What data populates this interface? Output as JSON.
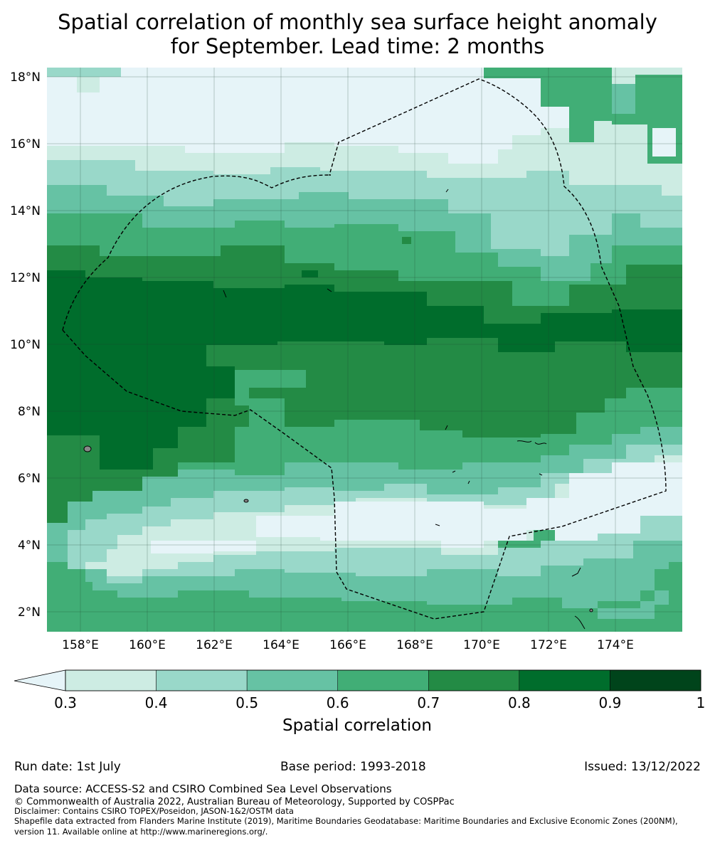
{
  "title": {
    "line1": "Spatial correlation of monthly sea surface height anomaly",
    "line2": "for September. Lead time: 2 months"
  },
  "map": {
    "lat_labels": [
      "18°N",
      "16°N",
      "14°N",
      "12°N",
      "10°N",
      "8°N",
      "6°N",
      "4°N",
      "2°N"
    ],
    "lon_labels": [
      "158°E",
      "160°E",
      "162°E",
      "164°E",
      "166°E",
      "168°E",
      "170°E",
      "172°E",
      "174°E"
    ],
    "extent": {
      "lon_min": 157.0,
      "lon_max": 176.0,
      "lat_min": 1.4,
      "lat_max": 18.3
    }
  },
  "colorbar": {
    "ticks": [
      "0.3",
      "0.4",
      "0.5",
      "0.6",
      "0.7",
      "0.8",
      "0.9",
      "1"
    ],
    "label": "Spatial correlation",
    "colors": [
      "#e6f4f8",
      "#cdece3",
      "#99d8c9",
      "#66c2a4",
      "#41ae76",
      "#238b45",
      "#006d2c",
      "#00441b"
    ]
  },
  "footer": {
    "run_date": "Run date: 1st July",
    "base_period": "Base period: 1993-2018",
    "issued": "Issued: 13/12/2022",
    "data_source": "Data source: ACCESS-S2 and CSIRO Combined Sea Level Observations",
    "copyright": "© Commonwealth of Australia 2022, Australian Bureau of Meteorology, Supported by COSPPac",
    "disclaimer": "Disclaimer: Contains CSIRO TOPEX/Poseidon, JASON-1&2/OSTM data",
    "shapefile_line1": "Shapefile data extracted from Flanders Marine Institute (2019), Maritime Boundaries Geodatabase: Maritime Boundaries and Exclusive Economic Zones (200NM),",
    "shapefile_line2": "version 11. Available online at http://www.marineregions.org/."
  }
}
